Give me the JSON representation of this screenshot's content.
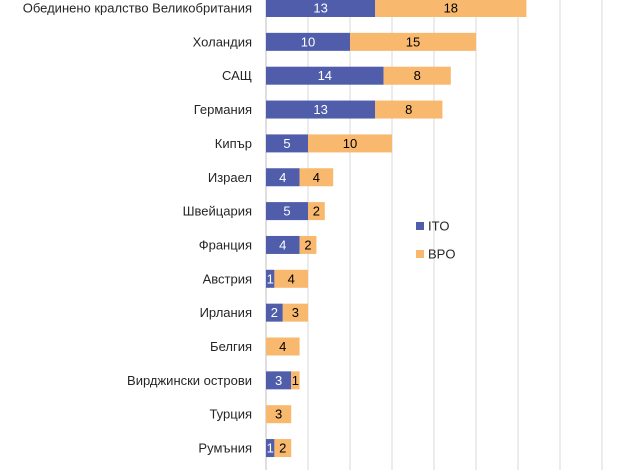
{
  "chart_data": {
    "type": "bar",
    "orientation": "horizontal",
    "stacked": true,
    "categories": [
      "Обединено кралство Великобритания",
      "Холандия",
      "САЩ",
      "Германия",
      "Кипър",
      "Израел",
      "Швейцария",
      "Франция",
      "Австрия",
      "Ирлания",
      "Белгия",
      "Вирджински острови",
      "Турция",
      "Румъния"
    ],
    "series": [
      {
        "name": "ITO",
        "color": "#4f5dab",
        "values": [
          13,
          10,
          14,
          13,
          5,
          4,
          5,
          4,
          1,
          2,
          0,
          3,
          0,
          1
        ]
      },
      {
        "name": "BPO",
        "color": "#f8b86e",
        "values": [
          18,
          15,
          8,
          8,
          10,
          4,
          2,
          2,
          4,
          3,
          4,
          1,
          3,
          2
        ]
      }
    ],
    "xlim": [
      0,
      40
    ],
    "x_grid_step": 5,
    "grid": true,
    "legend_position": "right"
  }
}
